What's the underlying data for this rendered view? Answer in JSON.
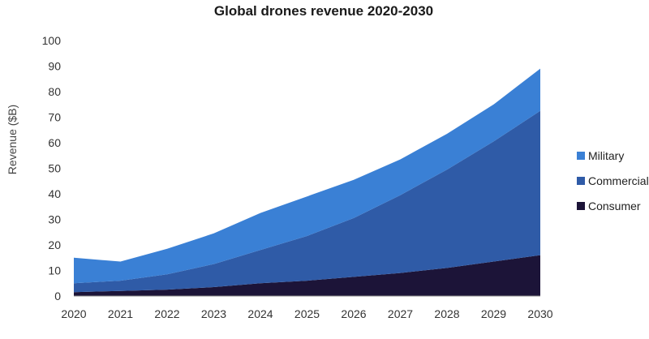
{
  "chart_data": {
    "type": "area",
    "stacked": true,
    "title": "Global drones revenue 2020-2030",
    "xlabel": "",
    "ylabel": "Revenue ($B)",
    "x": [
      "2020",
      "2021",
      "2022",
      "2023",
      "2024",
      "2025",
      "2026",
      "2027",
      "2028",
      "2029",
      "2030"
    ],
    "ylim": [
      0,
      100
    ],
    "yticks": [
      0,
      10,
      20,
      30,
      40,
      50,
      60,
      70,
      80,
      90,
      100
    ],
    "grid": false,
    "legend_position": "right",
    "series": [
      {
        "name": "Consumer",
        "color": "#1c1438",
        "values": [
          1.5,
          2,
          2.5,
          3.5,
          5,
          6,
          7.5,
          9,
          11,
          13.5,
          16
        ]
      },
      {
        "name": "Commercial",
        "color": "#2f5ba7",
        "values": [
          3.5,
          4,
          6,
          9,
          13,
          17.5,
          23,
          30.5,
          38.5,
          47,
          56.5
        ]
      },
      {
        "name": "Military",
        "color": "#3a80d5",
        "values": [
          10,
          7.5,
          10,
          12,
          14.5,
          15.5,
          15,
          14,
          14,
          14.5,
          16.5
        ]
      }
    ],
    "legend_order": [
      "Military",
      "Commercial",
      "Consumer"
    ]
  }
}
